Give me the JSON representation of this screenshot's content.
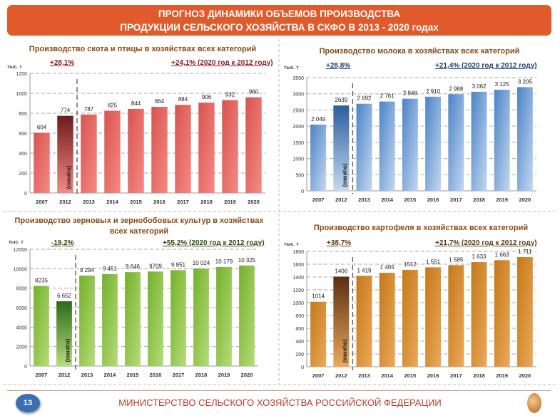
{
  "header": {
    "line1": "ПРОГНОЗ ДИНАМИКИ ОБЪЕМОВ ПРОИЗВОДСТВА",
    "line2": "ПРОДУКЦИИ СЕЛЬСКОГО ХОЗЯЙСТВА В СКФО В 2013 - 2020 годах"
  },
  "footer": {
    "page_number": "13",
    "text": "МИНИСТЕРСТВО СЕЛЬСКОГО ХОЗЯЙСТВА РОССИЙСКОЙ ФЕДЕРАЦИИ"
  },
  "chart_data": [
    {
      "type": "bar",
      "title": [
        "Производство скота и птицы в хозяйствах всех категорий"
      ],
      "ylabel": "тыс. т",
      "growth_left": "+28,1%",
      "growth_right": "+24,1% (2020 год  к 2012 году)",
      "estimate_label": "(оценка)",
      "categories": [
        "2007",
        "2012",
        "2013",
        "2014",
        "2015",
        "2016",
        "2017",
        "2018",
        "2019",
        "2020"
      ],
      "values": [
        604,
        774,
        787,
        825,
        844,
        864,
        884,
        906,
        932,
        960
      ],
      "data_labels": [
        "604",
        "774",
        "787",
        "825",
        "844",
        "864",
        "884",
        "906",
        "932",
        "960"
      ],
      "ylim": [
        0,
        1200
      ],
      "yticks": [
        "0",
        "200",
        "400",
        "600",
        "800",
        "1000",
        "1200"
      ],
      "grid": true,
      "colors": {
        "bar": "#d9534f",
        "bar_light": "#f58a85",
        "highlight": "#6e1b1b",
        "title": "#8a4a14",
        "growth": "#8b1a1a"
      }
    },
    {
      "type": "bar",
      "title": [
        "Производство молока в хозяйствах всех категорий"
      ],
      "ylabel": "тыс. т",
      "growth_left": "+28,8%",
      "growth_right": "+21,4% (2020 год  к 2012 году)",
      "estimate_label": "(оценка)",
      "categories": [
        "2007",
        "2012",
        "2013",
        "2014",
        "2015",
        "2016",
        "2017",
        "2018",
        "2019",
        "2020"
      ],
      "values": [
        2049,
        2639,
        2692,
        2761,
        2848,
        2910,
        2988,
        3062,
        3125,
        3205
      ],
      "data_labels": [
        "2 049",
        "2639",
        "2 692",
        "2 761",
        "2 848",
        "2 910",
        "2 988",
        "3 062",
        "3 125",
        "3 205"
      ],
      "ylim": [
        0,
        3500
      ],
      "yticks": [
        "0",
        "500",
        "1000",
        "1500",
        "2000",
        "2500",
        "3000",
        "3500"
      ],
      "grid": true,
      "colors": {
        "bar": "#4b83c8",
        "bar_light": "#c4d8f0",
        "highlight": "#2c5e9e",
        "title": "#8a4a14",
        "growth": "#1f3f6e"
      }
    },
    {
      "type": "bar",
      "title": [
        "Производство зерновых и зернобобовых культур в хозяйствах",
        "всех категорий"
      ],
      "ylabel": "тыс. т",
      "growth_left": "-19,2%",
      "growth_right": "+55,2% (2020 год  к 2012 году)",
      "estimate_label": "(оценка)",
      "categories": [
        "2007",
        "2012",
        "2013",
        "2014",
        "2015",
        "2016",
        "2017",
        "2018",
        "2019",
        "2020"
      ],
      "values": [
        8235,
        6652,
        9294,
        9451,
        9646,
        9709,
        9851,
        10024,
        10179,
        10325
      ],
      "data_labels": [
        "8235",
        "6 652",
        "9 294",
        "9 451",
        "9 646",
        "9709",
        "9 851",
        "10 024",
        "10 179",
        "10 325"
      ],
      "ylim": [
        0,
        12000
      ],
      "yticks": [
        "0",
        "2000",
        "4000",
        "6000",
        "8000",
        "10000",
        "12000"
      ],
      "grid": true,
      "colors": {
        "bar": "#74b02a",
        "bar_light": "#b5dc7a",
        "highlight": "#2d6a1c",
        "title": "#8a4a14",
        "growth": "#2d4a10"
      }
    },
    {
      "type": "bar",
      "title": [
        "Производство картофеля в хозяйствах всех категорий"
      ],
      "ylabel": "тыс. т",
      "growth_left": "+38,7%",
      "growth_right": "+21,7% (2020 год  к 2012 году)",
      "estimate_label": "(оценка)",
      "categories": [
        "2007",
        "2012",
        "2013",
        "2014",
        "2015",
        "2016",
        "2017",
        "2018",
        "2019",
        "2020"
      ],
      "values": [
        1014,
        1406,
        1419,
        1465,
        1512,
        1551,
        1585,
        1633,
        1663,
        1711
      ],
      "data_labels": [
        "1014",
        "1406",
        "1 419",
        "1 465",
        "1512",
        "1 551",
        "1 585",
        "1 633",
        "1 663",
        "1 711"
      ],
      "ylim": [
        0,
        1800
      ],
      "yticks": [
        "0",
        "200",
        "400",
        "600",
        "800",
        "1000",
        "1200",
        "1400",
        "1600",
        "1800"
      ],
      "grid": true,
      "colors": {
        "bar": "#c47818",
        "bar_light": "#eba95a",
        "highlight": "#5a2e12",
        "title": "#8a4a14",
        "growth": "#5a3a10"
      }
    }
  ]
}
